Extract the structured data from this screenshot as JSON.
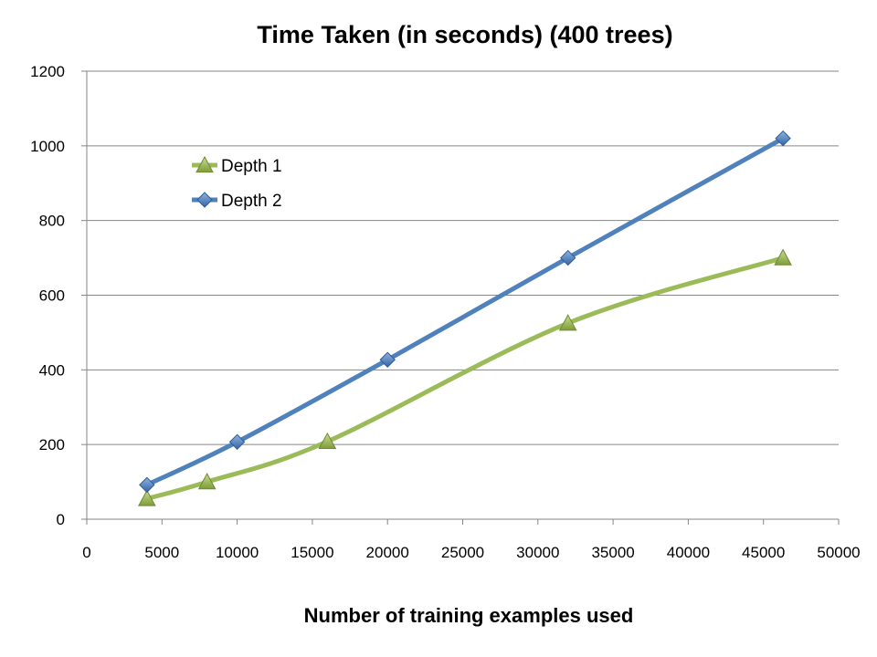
{
  "chart_data": {
    "type": "line",
    "title": "Time Taken (in seconds) (400 trees)",
    "xlabel": "Number of training examples used",
    "ylabel": "",
    "xlim": [
      0,
      50000
    ],
    "ylim": [
      0,
      1200
    ],
    "x_ticks": [
      "0",
      "5000",
      "10000",
      "15000",
      "20000",
      "25000",
      "30000",
      "35000",
      "40000",
      "45000",
      "50000"
    ],
    "y_ticks": [
      "0",
      "200",
      "400",
      "600",
      "800",
      "1000",
      "1200"
    ],
    "grid": "horizontal",
    "legend_position": "top-left",
    "smooth": true,
    "series": [
      {
        "name": "Depth 1",
        "color": "#9BBB59",
        "marker": "triangle",
        "points": [
          {
            "x": 4000,
            "y": 55
          },
          {
            "x": 8000,
            "y": 100
          },
          {
            "x": 16000,
            "y": 208
          },
          {
            "x": 32000,
            "y": 525
          },
          {
            "x": 46300,
            "y": 700
          }
        ]
      },
      {
        "name": "Depth 2",
        "color": "#4F81BD",
        "marker": "diamond",
        "points": [
          {
            "x": 4000,
            "y": 92
          },
          {
            "x": 10000,
            "y": 207
          },
          {
            "x": 20000,
            "y": 427
          },
          {
            "x": 32000,
            "y": 700
          },
          {
            "x": 46300,
            "y": 1020
          }
        ]
      }
    ]
  }
}
